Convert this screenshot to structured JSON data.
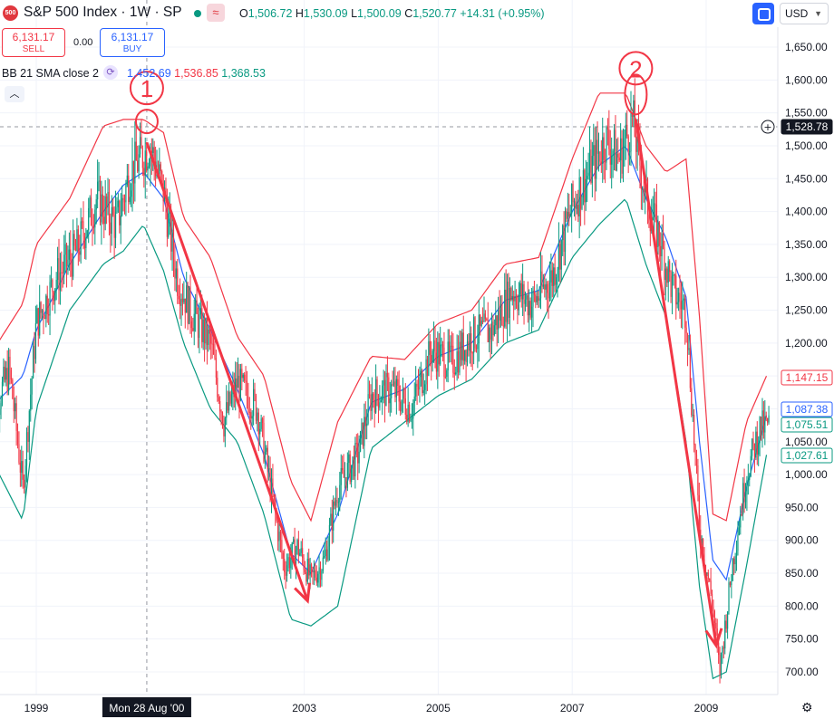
{
  "header": {
    "symbol_badge": "500",
    "title": "S&P 500 Index · 1W · SP",
    "ohlc": {
      "o_label": "O",
      "o": "1,506.72",
      "h_label": "H",
      "h": "1,530.09",
      "l_label": "L",
      "l": "1,500.09",
      "c_label": "C",
      "c": "1,520.77",
      "change": "+14.31 (+0.95%)"
    },
    "currency": "USD"
  },
  "trade": {
    "sell_price": "6,131.17",
    "sell_label": "SELL",
    "spread": "0.00",
    "buy_price": "6,131.17",
    "buy_label": "BUY"
  },
  "indicator": {
    "name": "BB 21 SMA close 2",
    "middle": "1,452.69",
    "upper": "1,536.85",
    "lower": "1,368.53"
  },
  "colors": {
    "up": "#089981",
    "down": "#f23645",
    "basis": "#2962ff",
    "upper_band": "#f23645",
    "lower_band": "#089981",
    "annotation": "#f23645"
  },
  "chart_data": {
    "type": "line",
    "title": "S&P 500 Index · 1W · SP",
    "xlabel": "",
    "ylabel": "",
    "x_ticks": [
      "1999",
      "2003",
      "2005",
      "2007",
      "2009"
    ],
    "x_crosshair_label": "Mon 28 Aug '00",
    "y_ticks": [
      "700.00",
      "750.00",
      "800.00",
      "850.00",
      "900.00",
      "950.00",
      "1,000.00",
      "1,050.00",
      "1,100.00",
      "1,150.00",
      "1,200.00",
      "1,250.00",
      "1,300.00",
      "1,350.00",
      "1,400.00",
      "1,450.00",
      "1,500.00",
      "1,550.00",
      "1,600.00",
      "1,650.00"
    ],
    "ylim": [
      670,
      1680
    ],
    "price_labels": [
      {
        "text": "1,528.78",
        "value": 1528.78,
        "kind": "crosshair"
      },
      {
        "text": "1,147.15",
        "value": 1147.15,
        "kind": "upper"
      },
      {
        "text": "1,087.38",
        "value": 1087.38,
        "kind": "basis"
      },
      {
        "text": "1,075.51",
        "value": 1075.51,
        "kind": "close"
      },
      {
        "text": "1,027.61",
        "value": 1027.61,
        "kind": "lower"
      }
    ],
    "series": [
      {
        "name": "BB 21 SMA close 2 (basis)",
        "t": [
          1998.3,
          1998.8,
          1999.0,
          1999.5,
          2000.0,
          2000.3,
          2000.6,
          2000.9,
          2001.2,
          2001.6,
          2002.0,
          2002.4,
          2002.8,
          2003.1,
          2003.5,
          2004.0,
          2004.5,
          2005.0,
          2005.5,
          2006.0,
          2006.5,
          2007.0,
          2007.4,
          2007.8,
          2008.1,
          2008.4,
          2008.7,
          2008.9,
          2009.1,
          2009.3,
          2009.6,
          2009.9
        ],
        "values": [
          1100,
          1150,
          1220,
          1320,
          1400,
          1440,
          1460,
          1420,
          1300,
          1220,
          1130,
          1030,
          880,
          850,
          940,
          1110,
          1130,
          1180,
          1200,
          1265,
          1280,
          1400,
          1470,
          1500,
          1420,
          1360,
          1270,
          1050,
          870,
          840,
          980,
          1090
        ]
      },
      {
        "name": "BB 21 SMA close 2 (upper)",
        "t": [
          1998.3,
          1998.8,
          1999.0,
          1999.5,
          2000.0,
          2000.3,
          2000.6,
          2000.9,
          2001.2,
          2001.6,
          2002.0,
          2002.4,
          2002.8,
          2003.1,
          2003.5,
          2004.0,
          2004.5,
          2005.0,
          2005.5,
          2006.0,
          2006.5,
          2007.0,
          2007.4,
          2007.8,
          2008.1,
          2008.4,
          2008.7,
          2008.9,
          2009.1,
          2009.3,
          2009.6,
          2009.9
        ],
        "values": [
          1180,
          1260,
          1350,
          1420,
          1530,
          1540,
          1540,
          1520,
          1390,
          1330,
          1210,
          1150,
          990,
          930,
          1080,
          1180,
          1175,
          1230,
          1250,
          1320,
          1330,
          1480,
          1580,
          1580,
          1500,
          1460,
          1480,
          1240,
          940,
          930,
          1080,
          1150
        ]
      },
      {
        "name": "BB 21 SMA close 2 (lower)",
        "t": [
          1998.3,
          1998.8,
          1999.0,
          1999.5,
          2000.0,
          2000.3,
          2000.6,
          2000.9,
          2001.2,
          2001.6,
          2002.0,
          2002.4,
          2002.8,
          2003.1,
          2003.5,
          2004.0,
          2004.5,
          2005.0,
          2005.5,
          2006.0,
          2006.5,
          2007.0,
          2007.4,
          2007.8,
          2008.1,
          2008.4,
          2008.7,
          2008.9,
          2009.1,
          2009.3,
          2009.6,
          2009.9
        ],
        "values": [
          1030,
          930,
          1100,
          1250,
          1320,
          1340,
          1380,
          1310,
          1200,
          1100,
          1050,
          940,
          780,
          770,
          800,
          1040,
          1080,
          1120,
          1145,
          1200,
          1220,
          1330,
          1380,
          1420,
          1320,
          1240,
          1050,
          830,
          690,
          700,
          860,
          1030
        ]
      },
      {
        "name": "price (close)",
        "t": [
          1998.3,
          1998.6,
          1998.8,
          1999.0,
          1999.3,
          1999.6,
          1999.9,
          2000.2,
          2000.4,
          2000.7,
          2000.9,
          2001.1,
          2001.3,
          2001.6,
          2001.8,
          2002.0,
          2002.3,
          2002.5,
          2002.7,
          2002.9,
          2003.1,
          2003.3,
          2003.5,
          2003.8,
          2004.0,
          2004.3,
          2004.6,
          2004.9,
          2005.2,
          2005.5,
          2005.8,
          2006.1,
          2006.4,
          2006.7,
          2007.0,
          2007.3,
          2007.5,
          2007.7,
          2007.9,
          2008.1,
          2008.3,
          2008.5,
          2008.7,
          2008.9,
          2009.1,
          2009.2,
          2009.4,
          2009.6,
          2009.8,
          2009.95
        ],
        "values": [
          1080,
          1160,
          980,
          1230,
          1300,
          1340,
          1420,
          1380,
          1460,
          1500,
          1430,
          1300,
          1250,
          1200,
          1080,
          1140,
          1100,
          980,
          860,
          890,
          840,
          870,
          980,
          1030,
          1120,
          1130,
          1100,
          1190,
          1170,
          1210,
          1220,
          1280,
          1260,
          1300,
          1410,
          1470,
          1510,
          1480,
          1540,
          1420,
          1360,
          1280,
          1250,
          920,
          800,
          700,
          870,
          1000,
          1070,
          1075
        ]
      }
    ],
    "annotations": [
      {
        "label": "1",
        "kind": "circle-marker",
        "t": 2000.65,
        "value": 1530
      },
      {
        "label": "2",
        "kind": "circle-marker",
        "t": 2007.95,
        "value": 1560
      },
      {
        "kind": "arrow",
        "from": {
          "t": 2000.65,
          "value": 1505
        },
        "to": {
          "t": 2003.05,
          "value": 808
        }
      },
      {
        "kind": "arrow",
        "from": {
          "t": 2007.95,
          "value": 1540
        },
        "to": {
          "t": 2009.15,
          "value": 740
        }
      }
    ]
  }
}
